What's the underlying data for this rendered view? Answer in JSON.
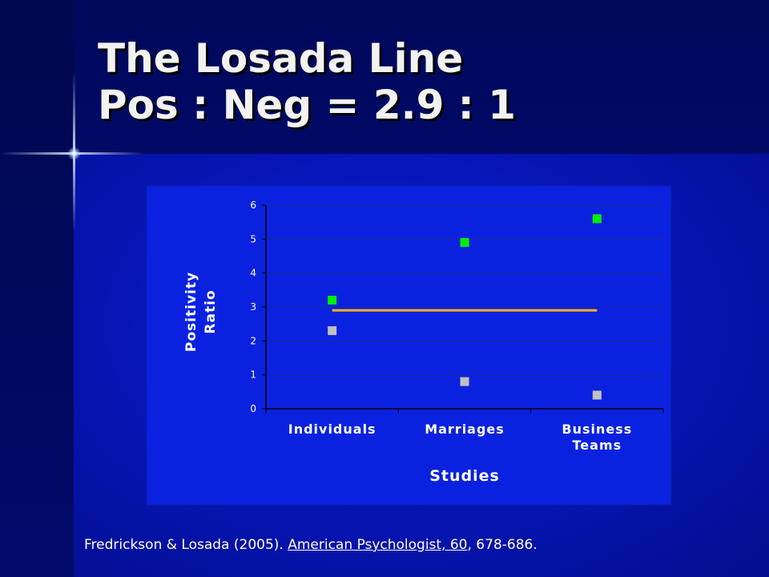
{
  "slide": {
    "title_line1": "The Losada Line",
    "title_line2": "Pos : Neg = 2.9 : 1"
  },
  "citation": {
    "authors": "Fredrickson & Losada (2005). ",
    "journal": "American Psychologist, 60",
    "pages": ", 678-686."
  },
  "chart_data": {
    "type": "scatter",
    "categories": [
      "Individuals",
      "Marriages",
      "Business Teams"
    ],
    "xlabel": "Studies",
    "ylabel": "Positivity Ratio",
    "ylim": [
      0,
      6
    ],
    "yticks": [
      0,
      1,
      2,
      3,
      4,
      5,
      6
    ],
    "grid": true,
    "series": [
      {
        "values": [
          3.2,
          4.9,
          5.6
        ],
        "color": "#00ee00"
      },
      {
        "values": [
          2.3,
          0.8,
          0.4
        ],
        "color": "#c0c0c0"
      }
    ],
    "reference_line": {
      "value": 2.9,
      "color": "#ffb020"
    },
    "colors": {
      "panel": "#0a22e0",
      "axis": "#000000",
      "text": "#ffffff"
    }
  }
}
